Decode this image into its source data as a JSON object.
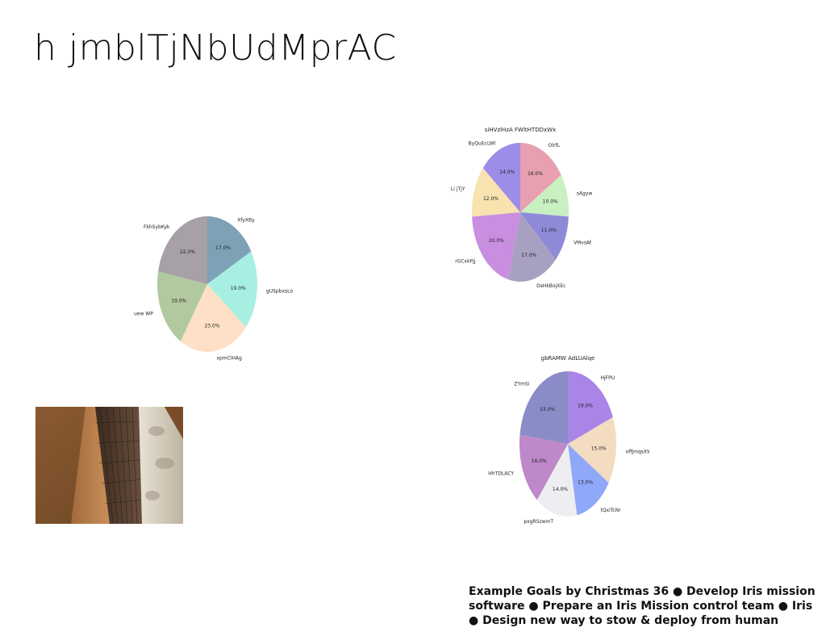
{
  "slide": {
    "title": "h jmblTjNbUdMprAC",
    "goals_text": "Example Goals by Christmas 36 ● Develop Iris mission software ● Prepare an Iris Mission control team ● Iris ● Design new way to stow & deploy from human"
  },
  "photo": {
    "alt": "building-photo"
  },
  "chart_data": [
    {
      "type": "pie",
      "title": "",
      "labels": [
        "XfyXBy",
        "gUSpbxsLo",
        "xpmClHAg",
        "uew WP",
        "FkhSybKyk"
      ],
      "values": [
        17.0,
        19.0,
        23.0,
        19.0,
        22.0
      ],
      "value_labels": [
        "17.0%",
        "19.0%",
        "23.0%",
        "19.0%",
        "22.0%"
      ],
      "colors": [
        "#7fa1b6",
        "#a8efe3",
        "#fde0c5",
        "#b2c9a0",
        "#a7a0a6"
      ]
    },
    {
      "type": "pie",
      "title": "siHVzlHzA FWltHTDDxWx",
      "labels": [
        "OlrfL",
        "sAgyw",
        "VMvsAf",
        "DsHkBojXEc",
        "rGCxkPjj",
        "Li jTjY",
        "ByQuEcLWl"
      ],
      "values": [
        16.0,
        10.0,
        11.0,
        17.0,
        20.0,
        12.0,
        14.0
      ],
      "value_labels": [
        "16.0%",
        "10.0%",
        "11.0%",
        "17.0%",
        "20.0%",
        "12.0%",
        "14.0%"
      ],
      "colors": [
        "#e8a0b0",
        "#c8f0c0",
        "#8f8ad8",
        "#a8a0c0",
        "#c98ee0",
        "#f8e2b0",
        "#9d8ce8"
      ]
    },
    {
      "type": "pie",
      "title": "gbRAMW AdLUAlqe",
      "labels": [
        "HjFPU",
        "offjmqsXW",
        "tQxiTcNr",
        "pxgRSzwmT",
        "EHhTDLACY",
        "ZYmSi"
      ],
      "values": [
        19.0,
        15.0,
        13.0,
        14.0,
        16.0,
        23.0
      ],
      "value_labels": [
        "19.0%",
        "15.0%",
        "13.0%",
        "14.0%",
        "16.0%",
        "23.0%"
      ],
      "colors": [
        "#a985e8",
        "#f4dcc0",
        "#8fa8f8",
        "#eeeef2",
        "#bf88c8",
        "#8a8cc8"
      ]
    }
  ]
}
